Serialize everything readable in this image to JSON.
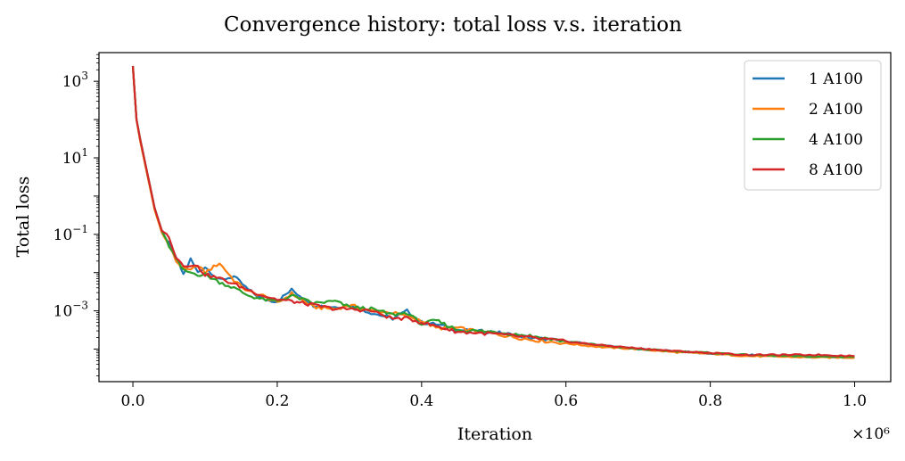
{
  "chart_data": {
    "type": "line",
    "title": "Convergence history: total loss v.s. iteration",
    "xlabel": "Iteration",
    "ylabel": "Total loss",
    "x_scale_multiplier_label": "×10⁶",
    "xlim": [
      -0.047,
      1.05
    ],
    "ylim_log10": [
      -4.85,
      3.75
    ],
    "yscale": "log",
    "grid": false,
    "legend_position": "top-right",
    "x_ticks": [
      0.0,
      0.2,
      0.4,
      0.6,
      0.8,
      1.0
    ],
    "x_tick_labels": [
      "0.0",
      "0.2",
      "0.4",
      "0.6",
      "0.8",
      "1.0"
    ],
    "y_ticks_log10": [
      3,
      1,
      -1,
      -3
    ],
    "y_tick_bases": [
      "10",
      "10",
      "10",
      "10"
    ],
    "y_tick_exponents": [
      "3",
      "1",
      "−1",
      "−3"
    ],
    "series": [
      {
        "name": "1 A100",
        "color": "#1f77b4",
        "x": [
          0.0,
          0.005,
          0.01,
          0.02,
          0.03,
          0.04,
          0.05,
          0.06,
          0.07,
          0.08,
          0.09,
          0.1,
          0.12,
          0.14,
          0.16,
          0.18,
          0.2,
          0.22,
          0.25,
          0.28,
          0.3,
          0.33,
          0.36,
          0.38,
          0.4,
          0.42,
          0.45,
          0.5,
          0.55,
          0.6,
          0.65,
          0.7,
          0.75,
          0.8,
          0.85,
          0.9,
          0.95,
          1.0
        ],
        "y_log10": [
          3.4,
          2.0,
          1.5,
          0.6,
          -0.3,
          -0.9,
          -1.25,
          -1.6,
          -2.05,
          -1.65,
          -2.0,
          -1.85,
          -2.2,
          -2.1,
          -2.45,
          -2.7,
          -2.75,
          -2.45,
          -2.85,
          -2.9,
          -2.85,
          -3.05,
          -3.2,
          -3.0,
          -3.3,
          -3.35,
          -3.5,
          -3.55,
          -3.7,
          -3.8,
          -3.9,
          -4.0,
          -4.05,
          -4.12,
          -4.15,
          -4.18,
          -4.2,
          -4.22
        ]
      },
      {
        "name": "2 A100",
        "color": "#ff7f0e",
        "x": [
          0.0,
          0.005,
          0.01,
          0.02,
          0.03,
          0.04,
          0.05,
          0.06,
          0.07,
          0.08,
          0.09,
          0.1,
          0.12,
          0.14,
          0.16,
          0.18,
          0.2,
          0.22,
          0.25,
          0.28,
          0.3,
          0.33,
          0.36,
          0.38,
          0.4,
          0.42,
          0.45,
          0.5,
          0.55,
          0.6,
          0.65,
          0.7,
          0.75,
          0.8,
          0.85,
          0.9,
          0.95,
          1.0
        ],
        "y_log10": [
          3.4,
          2.0,
          1.45,
          0.55,
          -0.35,
          -0.95,
          -1.3,
          -1.7,
          -1.9,
          -1.95,
          -1.8,
          -2.0,
          -1.75,
          -2.2,
          -2.5,
          -2.6,
          -2.8,
          -2.55,
          -2.9,
          -2.95,
          -2.85,
          -3.0,
          -3.05,
          -3.15,
          -3.25,
          -3.45,
          -3.45,
          -3.6,
          -3.75,
          -3.85,
          -3.95,
          -4.0,
          -4.08,
          -4.12,
          -4.18,
          -4.2,
          -4.22,
          -4.22
        ]
      },
      {
        "name": "4 A100",
        "color": "#2ca02c",
        "x": [
          0.0,
          0.005,
          0.01,
          0.02,
          0.03,
          0.04,
          0.05,
          0.06,
          0.07,
          0.08,
          0.09,
          0.1,
          0.12,
          0.14,
          0.16,
          0.18,
          0.2,
          0.22,
          0.25,
          0.28,
          0.3,
          0.33,
          0.36,
          0.38,
          0.4,
          0.42,
          0.45,
          0.5,
          0.55,
          0.6,
          0.65,
          0.7,
          0.75,
          0.8,
          0.85,
          0.9,
          0.95,
          1.0
        ],
        "y_log10": [
          3.4,
          2.0,
          1.5,
          0.6,
          -0.3,
          -0.9,
          -1.3,
          -1.65,
          -1.95,
          -2.0,
          -2.05,
          -2.05,
          -2.25,
          -2.4,
          -2.6,
          -2.7,
          -2.75,
          -2.6,
          -2.8,
          -2.75,
          -2.9,
          -2.95,
          -3.1,
          -3.05,
          -3.35,
          -3.25,
          -3.5,
          -3.55,
          -3.65,
          -3.8,
          -3.9,
          -4.0,
          -4.05,
          -4.1,
          -4.15,
          -4.18,
          -4.2,
          -4.2
        ]
      },
      {
        "name": "8 A100",
        "color": "#d62728",
        "x": [
          0.0,
          0.005,
          0.01,
          0.02,
          0.03,
          0.04,
          0.05,
          0.06,
          0.07,
          0.08,
          0.09,
          0.1,
          0.12,
          0.14,
          0.16,
          0.18,
          0.2,
          0.22,
          0.25,
          0.28,
          0.3,
          0.33,
          0.36,
          0.38,
          0.4,
          0.42,
          0.45,
          0.5,
          0.55,
          0.6,
          0.65,
          0.7,
          0.75,
          0.8,
          0.85,
          0.9,
          0.95,
          1.0
        ],
        "y_log10": [
          3.4,
          2.0,
          1.5,
          0.6,
          -0.3,
          -0.9,
          -1.05,
          -1.6,
          -1.8,
          -1.8,
          -1.85,
          -2.05,
          -2.15,
          -2.3,
          -2.45,
          -2.6,
          -2.7,
          -2.75,
          -2.85,
          -2.95,
          -2.95,
          -3.0,
          -3.2,
          -3.2,
          -3.3,
          -3.4,
          -3.55,
          -3.6,
          -3.7,
          -3.8,
          -3.9,
          -3.98,
          -4.05,
          -4.1,
          -4.15,
          -4.15,
          -4.15,
          -4.18
        ]
      }
    ]
  }
}
